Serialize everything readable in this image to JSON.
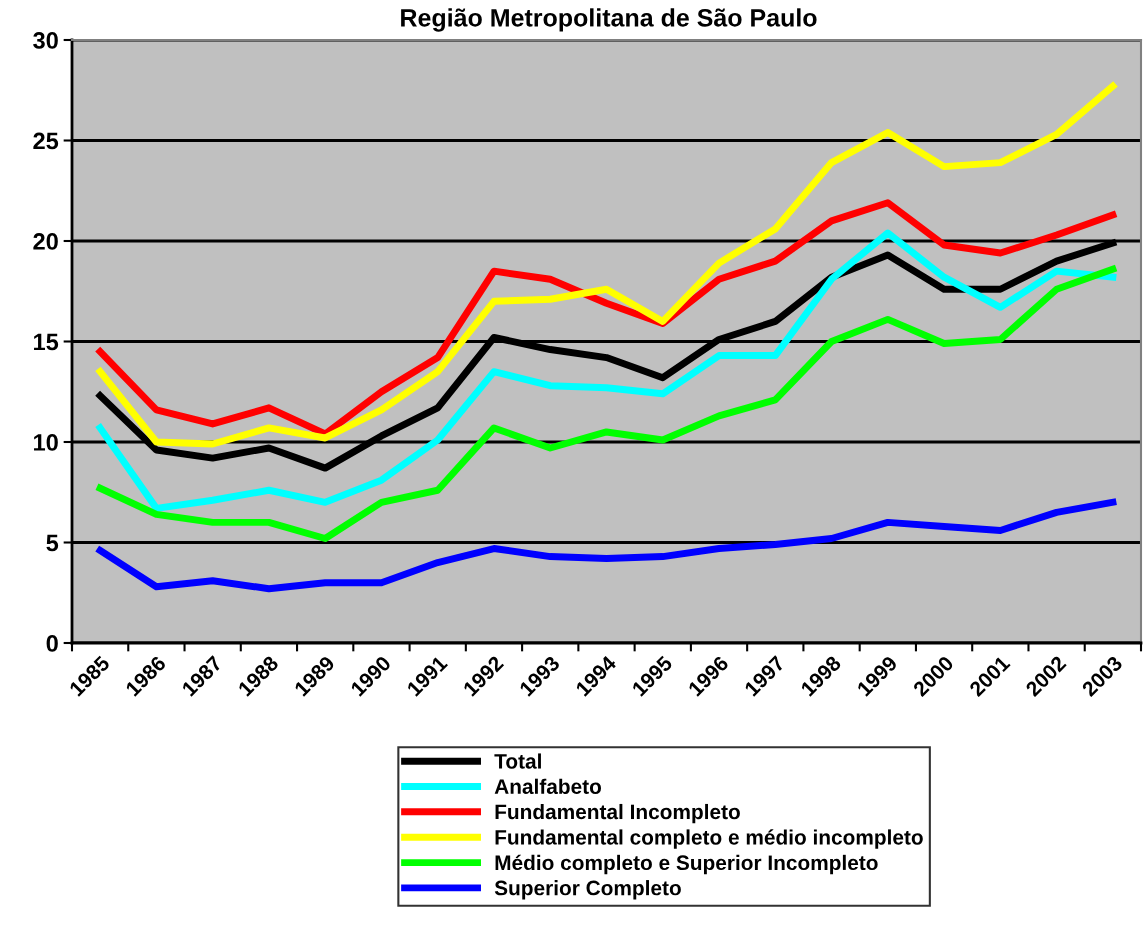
{
  "chart_data": {
    "type": "line",
    "title": "Região Metropolitana de São Paulo",
    "categories": [
      "1985",
      "1986",
      "1987",
      "1988",
      "1989",
      "1990",
      "1991",
      "1992",
      "1993",
      "1994",
      "1995",
      "1996",
      "1997",
      "1998",
      "1999",
      "2000",
      "2001",
      "2002",
      "2003"
    ],
    "series": [
      {
        "name": "Total",
        "color": "#000000",
        "values": [
          12.3,
          9.6,
          9.2,
          9.7,
          8.7,
          10.3,
          11.7,
          15.2,
          14.6,
          14.2,
          13.2,
          15.1,
          16.0,
          18.2,
          19.3,
          17.6,
          17.6,
          19.0,
          19.9
        ]
      },
      {
        "name": "Analfabeto",
        "color": "#00ffff",
        "values": [
          10.7,
          6.7,
          7.1,
          7.6,
          7.0,
          8.1,
          10.1,
          13.5,
          12.8,
          12.7,
          12.4,
          14.3,
          14.3,
          18.1,
          20.4,
          18.2,
          16.7,
          18.5,
          18.2
        ]
      },
      {
        "name": "Fundamental Incompleto",
        "color": "#ff0000",
        "values": [
          14.5,
          11.6,
          10.9,
          11.7,
          10.4,
          12.5,
          14.2,
          18.5,
          18.1,
          16.9,
          15.9,
          18.1,
          19.0,
          21.0,
          21.9,
          19.8,
          19.4,
          20.3,
          21.3
        ]
      },
      {
        "name": "Fundamental completo e médio incompleto",
        "color": "#ffff00",
        "values": [
          13.5,
          10.0,
          9.9,
          10.7,
          10.2,
          11.6,
          13.5,
          17.0,
          17.1,
          17.6,
          16.0,
          18.9,
          20.6,
          23.9,
          25.4,
          23.7,
          23.9,
          25.3,
          27.7
        ]
      },
      {
        "name": "Médio completo e Superior Incompleto",
        "color": "#00ff00",
        "values": [
          7.7,
          6.4,
          6.0,
          6.0,
          5.2,
          7.0,
          7.6,
          10.7,
          9.7,
          10.5,
          10.1,
          11.3,
          12.1,
          15.0,
          16.1,
          14.9,
          15.1,
          17.6,
          18.6
        ]
      },
      {
        "name": "Superior Completo",
        "color": "#0000ff",
        "values": [
          4.6,
          2.8,
          3.1,
          2.7,
          3.0,
          3.0,
          4.0,
          4.7,
          4.3,
          4.2,
          4.3,
          4.7,
          4.9,
          5.2,
          6.0,
          5.8,
          5.6,
          6.5,
          7.0
        ]
      }
    ],
    "ylim": [
      0,
      30
    ],
    "yticks": [
      0,
      5,
      10,
      15,
      20,
      25,
      30
    ],
    "grid": "y",
    "legend": "bottom",
    "line_style": "solid",
    "marker": "none"
  }
}
